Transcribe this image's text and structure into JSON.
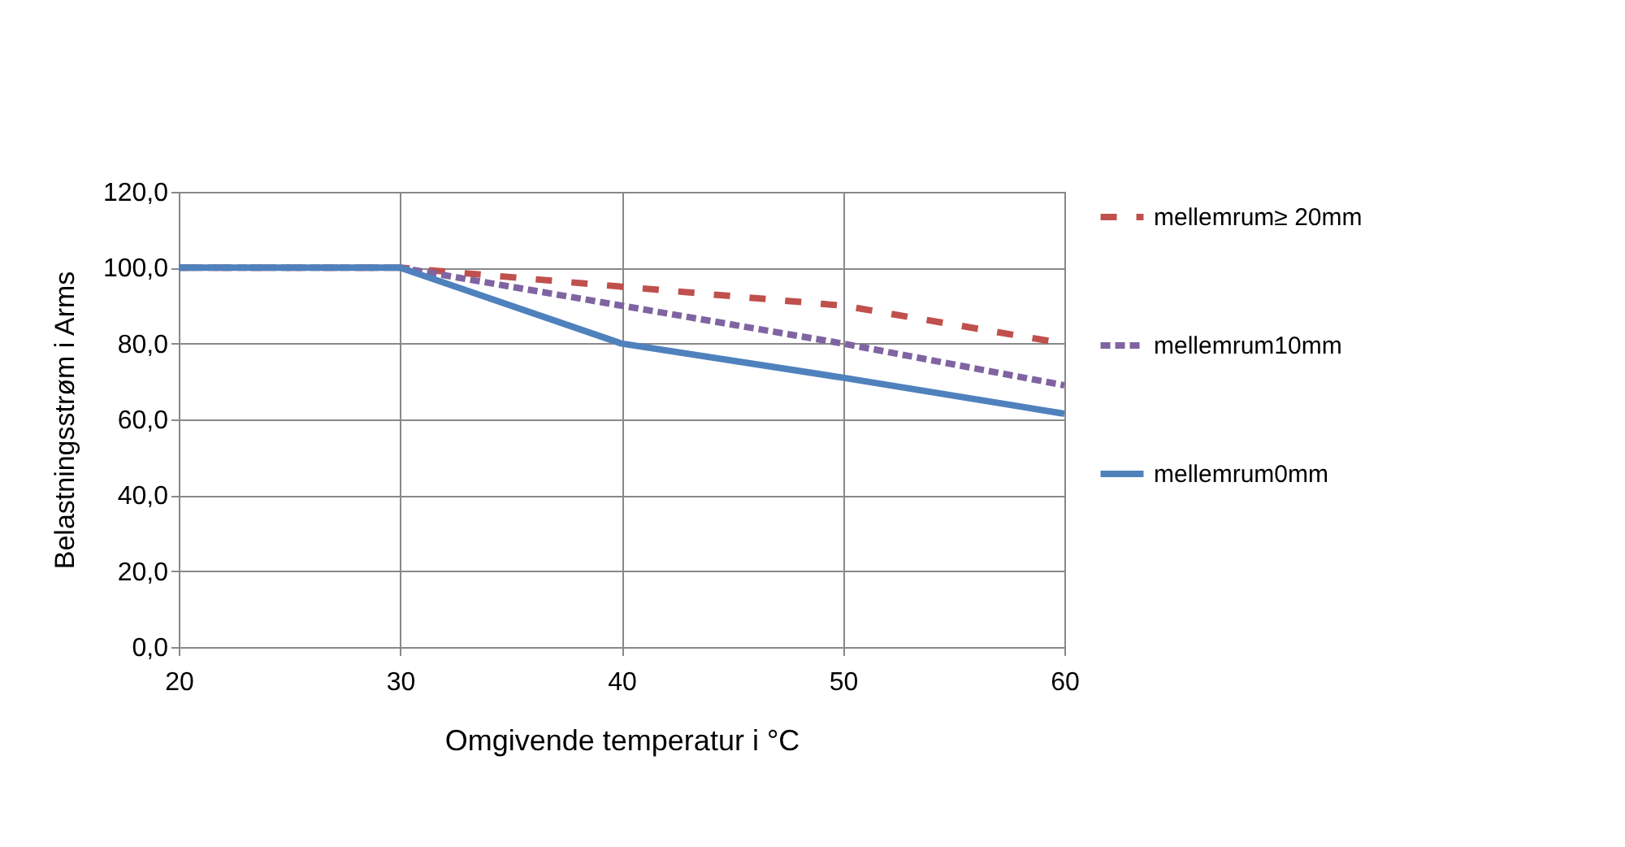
{
  "chart_data": {
    "type": "line",
    "xlabel": "Omgivende temperatur i °C",
    "ylabel": "Belastningsstrøm i Arms",
    "x": [
      20,
      30,
      40,
      50,
      60
    ],
    "series": [
      {
        "name": "mellemrum≥ 20mm",
        "color": "#c0504d",
        "line_style": "dashed",
        "values": [
          100,
          100,
          95,
          90,
          80
        ]
      },
      {
        "name": "mellemrum10mm",
        "color": "#8064a2",
        "line_style": "dotted",
        "values": [
          100,
          100,
          90,
          80,
          69
        ]
      },
      {
        "name": "mellemrum0mm",
        "color": "#4f81bd",
        "line_style": "solid",
        "values": [
          100,
          100,
          80,
          71,
          61.5
        ]
      }
    ],
    "xlim": [
      20,
      60
    ],
    "xticks": [
      20,
      30,
      40,
      50,
      60
    ],
    "ylim": [
      0,
      120
    ],
    "yticks": [
      {
        "value": 0,
        "label": "0,0"
      },
      {
        "value": 20,
        "label": "20,0"
      },
      {
        "value": 40,
        "label": "40,0"
      },
      {
        "value": 60,
        "label": "60,0"
      },
      {
        "value": 80,
        "label": "80,0"
      },
      {
        "value": 100,
        "label": "100,0"
      },
      {
        "value": 120,
        "label": "120,0"
      }
    ],
    "grid": true,
    "legend": "right",
    "marker": "none"
  }
}
